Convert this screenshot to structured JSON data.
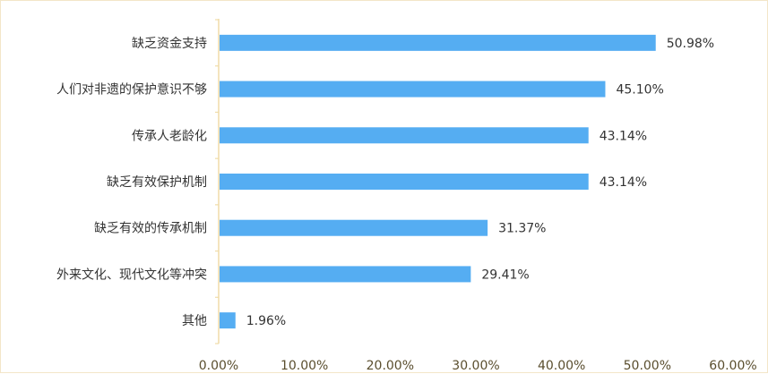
{
  "chart_data": {
    "type": "bar",
    "orientation": "horizontal",
    "categories": [
      "缺乏资金支持",
      "人们对非遗的保护意识不够",
      "传承人老龄化",
      "缺乏有效保护机制",
      "缺乏有效的传承机制",
      "外来文化、现代文化等冲突",
      "其他"
    ],
    "values": [
      50.98,
      45.1,
      43.14,
      43.14,
      31.37,
      29.41,
      1.96
    ],
    "value_labels": [
      "50.98%",
      "45.10%",
      "43.14%",
      "43.14%",
      "31.37%",
      "29.41%",
      "1.96%"
    ],
    "xlim": [
      0,
      60
    ],
    "xticks": [
      0,
      10,
      20,
      30,
      40,
      50,
      60
    ],
    "xtick_labels": [
      "0.00%",
      "10.00%",
      "20.00%",
      "30.00%",
      "40.00%",
      "50.00%",
      "60.00%"
    ],
    "title": "",
    "xlabel": "",
    "ylabel": "",
    "grid": false,
    "legend": "none",
    "colors": {
      "bar": "#55adf2",
      "axis": "#f0dca8",
      "border": "#f3e6c8",
      "text": "#333333",
      "tick_text": "#5a4e2e"
    }
  }
}
